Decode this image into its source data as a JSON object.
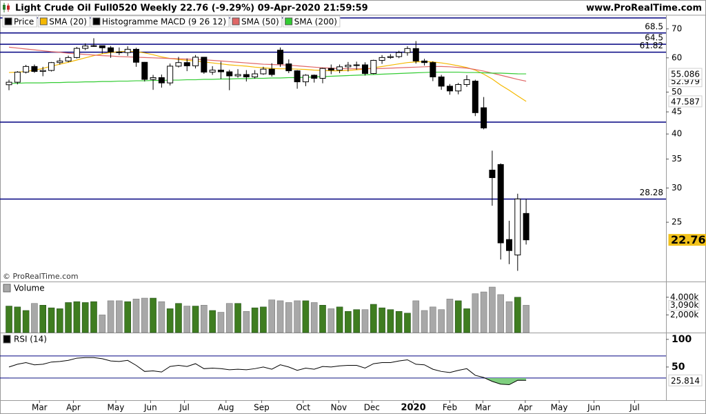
{
  "header": {
    "title": "Light Crude Oil Full0520 Weekly 22.76 (-9.29%) 09-Apr-2020 21:59:59",
    "site": "www.ProRealTime.com",
    "watermark": "© ProRealTime.com"
  },
  "chart_data": [
    {
      "type": "candlestick",
      "name": "Price",
      "log_scale": true,
      "grid": false,
      "up_color": "#ffffff",
      "down_color": "#000000",
      "open": [
        52.0,
        52.7,
        55.6,
        57.3,
        55.8,
        56.1,
        58.5,
        59.0,
        60.1,
        63.1,
        63.9,
        64.0,
        63.3,
        61.9,
        61.7,
        62.8,
        58.6,
        53.5,
        54.0,
        52.5,
        57.4,
        58.5,
        57.5,
        60.2,
        55.6,
        56.2,
        55.7,
        54.5,
        54.9,
        54.2,
        55.1,
        56.5,
        62.5,
        58.1,
        56.0,
        52.8,
        54.7,
        53.8,
        56.7,
        56.2,
        57.2,
        57.7,
        57.8,
        55.2,
        59.2,
        60.1,
        60.4,
        61.7,
        63.05,
        59.0,
        58.5,
        54.2,
        51.6,
        50.3,
        52.05,
        53.0,
        46.0,
        33.0,
        34.0,
        22.8,
        21.0,
        26.2
      ],
      "high": [
        53.4,
        55.9,
        57.8,
        57.9,
        57.2,
        58.7,
        60.0,
        60.7,
        63.6,
        64.8,
        66.6,
        64.0,
        63.9,
        63.4,
        63.8,
        63.3,
        58.7,
        54.8,
        54.9,
        58.2,
        60.3,
        59.8,
        60.9,
        60.3,
        57.4,
        58.8,
        56.3,
        56.5,
        56.2,
        56.2,
        57.2,
        58.3,
        63.4,
        59.5,
        56.2,
        55.0,
        54.9,
        56.9,
        57.9,
        57.9,
        58.7,
        58.8,
        58.6,
        59.4,
        60.9,
        61.2,
        62.3,
        63.8,
        65.6,
        59.7,
        58.9,
        54.8,
        52.2,
        52.5,
        54.7,
        53.4,
        48.7,
        36.6,
        34.2,
        25.2,
        29.1,
        28.3
      ],
      "low": [
        50.5,
        52.1,
        55.2,
        55.4,
        54.4,
        55.8,
        57.9,
        58.6,
        59.8,
        62.5,
        63.6,
        61.4,
        60.0,
        60.9,
        60.6,
        57.2,
        52.9,
        50.6,
        51.2,
        51.8,
        57.0,
        55.9,
        56.7,
        55.1,
        54.8,
        53.6,
        50.5,
        54.0,
        52.9,
        53.7,
        54.8,
        54.3,
        57.2,
        55.3,
        50.9,
        51.6,
        52.6,
        52.4,
        55.0,
        55.3,
        55.8,
        56.3,
        54.6,
        55.0,
        58.1,
        59.7,
        59.9,
        60.7,
        58.2,
        57.6,
        53.0,
        50.6,
        49.3,
        49.4,
        51.4,
        44.0,
        41.0,
        27.3,
        20.5,
        20.0,
        19.3,
        22.2
      ],
      "close": [
        52.7,
        55.6,
        57.3,
        55.8,
        56.1,
        58.5,
        59.0,
        60.1,
        63.1,
        63.9,
        64.0,
        63.3,
        61.9,
        61.7,
        62.8,
        58.6,
        53.5,
        54.0,
        52.5,
        57.4,
        58.5,
        57.5,
        60.2,
        55.6,
        56.2,
        55.7,
        54.5,
        54.9,
        54.2,
        55.1,
        56.5,
        54.9,
        58.1,
        56.0,
        52.8,
        54.7,
        53.8,
        56.7,
        56.2,
        57.2,
        57.7,
        57.8,
        55.2,
        59.2,
        60.1,
        60.4,
        61.7,
        63.05,
        59.0,
        58.5,
        54.2,
        51.6,
        50.3,
        52.05,
        53.4,
        44.8,
        41.3,
        31.7,
        22.4,
        21.5,
        28.3,
        22.76
      ],
      "last_color": "#f2c21b",
      "series": [
        {
          "name": "SMA (20)",
          "color": "#f5b800",
          "values": [
            55.5,
            55.6,
            55.8,
            56.2,
            56.7,
            57.4,
            58.0,
            58.6,
            59.3,
            60.0,
            60.7,
            61.3,
            61.7,
            62.0,
            62.1,
            62.0,
            61.6,
            61.0,
            60.3,
            59.8,
            59.5,
            59.2,
            59.0,
            58.7,
            58.4,
            58.1,
            57.8,
            57.6,
            57.4,
            57.1,
            56.9,
            56.7,
            56.6,
            56.6,
            56.5,
            56.4,
            56.2,
            56.1,
            56.0,
            56.0,
            56.1,
            56.3,
            56.5,
            56.9,
            57.3,
            57.7,
            58.1,
            58.5,
            58.7,
            58.8,
            58.7,
            58.4,
            58.0,
            57.5,
            57.0,
            56.2,
            55.0,
            53.6,
            51.9,
            50.5,
            49.0,
            47.587
          ]
        },
        {
          "name": "SMA (50)",
          "color": "#e06666",
          "values": [
            63.5,
            63.2,
            62.9,
            62.6,
            62.3,
            62.0,
            61.8,
            61.5,
            61.3,
            61.1,
            60.9,
            60.7,
            60.6,
            60.4,
            60.3,
            60.2,
            60.1,
            60.0,
            59.9,
            59.8,
            59.7,
            59.6,
            59.5,
            59.4,
            59.2,
            59.0,
            58.8,
            58.6,
            58.4,
            58.2,
            58.0,
            57.9,
            57.8,
            57.7,
            57.5,
            57.3,
            57.1,
            56.9,
            56.8,
            56.7,
            56.6,
            56.6,
            56.6,
            56.6,
            56.7,
            56.8,
            56.9,
            57.0,
            57.1,
            57.2,
            57.3,
            57.3,
            57.2,
            57.0,
            56.8,
            56.4,
            55.9,
            55.3,
            54.7,
            54.1,
            53.5,
            52.979
          ]
        },
        {
          "name": "SMA (200)",
          "color": "#33cc33",
          "values": [
            52.4,
            52.4,
            52.5,
            52.5,
            52.5,
            52.6,
            52.6,
            52.7,
            52.7,
            52.8,
            52.8,
            52.9,
            52.9,
            53.0,
            53.0,
            53.1,
            53.1,
            53.2,
            53.2,
            53.3,
            53.3,
            53.4,
            53.4,
            53.5,
            53.5,
            53.6,
            53.6,
            53.7,
            53.7,
            53.8,
            53.8,
            53.9,
            53.9,
            54.0,
            54.0,
            54.1,
            54.2,
            54.3,
            54.4,
            54.5,
            54.6,
            54.7,
            54.8,
            54.9,
            55.0,
            55.1,
            55.2,
            55.3,
            55.4,
            55.5,
            55.6,
            55.6,
            55.6,
            55.6,
            55.5,
            55.5,
            55.4,
            55.3,
            55.3,
            55.2,
            55.1,
            55.086
          ]
        }
      ],
      "indicators": [
        {
          "name": "Histogramme MACD (9 26 12)",
          "color": "#000000"
        }
      ],
      "levels": [
        68.5,
        64.5,
        61.82,
        28.28
      ],
      "lines": [
        74.2,
        42.6
      ],
      "level_color": "#000080",
      "ylim": [
        18.3,
        75.3
      ],
      "yticks": [
        70,
        60,
        50,
        45,
        40,
        35,
        30,
        25
      ],
      "xlim": [
        -1.06,
        77.5
      ],
      "xticks": [
        {
          "value": 3.6,
          "label": "Mar"
        },
        {
          "value": 7.6,
          "label": "Apr"
        },
        {
          "value": 12.6,
          "label": "May"
        },
        {
          "value": 16.7,
          "label": "Jun"
        },
        {
          "value": 20.7,
          "label": "Jul"
        },
        {
          "value": 25.6,
          "label": "Aug"
        },
        {
          "value": 29.8,
          "label": "Sep"
        },
        {
          "value": 34.7,
          "label": "Oct"
        },
        {
          "value": 38.9,
          "label": "Nov"
        },
        {
          "value": 42.8,
          "label": "Dec"
        },
        {
          "value": 47.7,
          "label": "2020"
        },
        {
          "value": 52.0,
          "label": "Feb"
        },
        {
          "value": 55.9,
          "label": "Mar"
        },
        {
          "value": 60.9,
          "label": "Apr"
        },
        {
          "value": 64.9,
          "label": "May"
        },
        {
          "value": 69.0,
          "label": "Jun"
        },
        {
          "value": 73.8,
          "label": "Jul"
        }
      ]
    },
    {
      "type": "bar",
      "title": "Volume",
      "up_color": "#3f7d20",
      "down_color": "#a8a8a8",
      "values": [
        3000,
        2900,
        2500,
        3300,
        3100,
        2800,
        2700,
        3400,
        3500,
        3400,
        3500,
        2000,
        3600,
        3600,
        3500,
        3800,
        3900,
        3900,
        3500,
        2700,
        3300,
        3000,
        3000,
        3100,
        2500,
        2300,
        3300,
        3300,
        2400,
        2800,
        2900,
        3700,
        3600,
        3400,
        3600,
        3600,
        3400,
        3100,
        2700,
        2900,
        2400,
        2600,
        2600,
        3200,
        2800,
        2600,
        2400,
        2200,
        3600,
        2500,
        2900,
        2600,
        3800,
        3600,
        2700,
        4400,
        4600,
        5150,
        4300,
        3500,
        4000,
        3090
      ],
      "last_label": "3,090k",
      "ylim": [
        0,
        5700
      ],
      "yticks": [
        {
          "value": 4000,
          "label": "4,000k"
        },
        {
          "value": 2000,
          "label": "2,000k"
        }
      ]
    },
    {
      "type": "line",
      "title": "RSI (14)",
      "color": "#000000",
      "fill_color": "#7fcf7f",
      "level_color": "#000080",
      "values": [
        50,
        55,
        58,
        54,
        55,
        59,
        60,
        62,
        66,
        67,
        67,
        65,
        61,
        60,
        62,
        53,
        42,
        43,
        41,
        51,
        53,
        51,
        56,
        47,
        48,
        47,
        45,
        46,
        45,
        47,
        50,
        46,
        54,
        50,
        44,
        48,
        46,
        51,
        50,
        52,
        53,
        53,
        48,
        56,
        58,
        58,
        61,
        63,
        55,
        54,
        46,
        42,
        40,
        44,
        47,
        35,
        31,
        24,
        19,
        18,
        26,
        25.814
      ],
      "levels": [
        70,
        30
      ],
      "ylim": [
        -10,
        111
      ],
      "yticks": [
        100,
        50
      ]
    }
  ]
}
